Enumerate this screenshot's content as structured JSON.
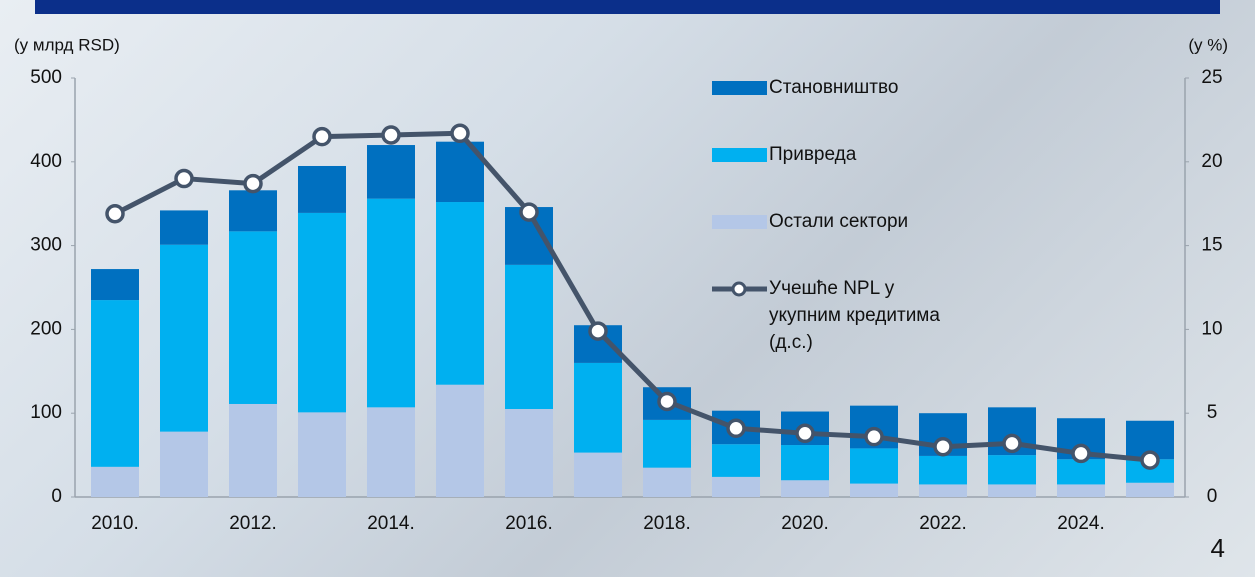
{
  "page_number": "4",
  "chart_data": {
    "type": "bar",
    "stacked": true,
    "y_label": "(у млрд RSD)",
    "y2_label": "(у %)",
    "categories": [
      "2010.",
      null,
      "2012.",
      null,
      "2014.",
      null,
      "2016.",
      null,
      "2018.",
      null,
      "2020.",
      null,
      "2022.",
      null,
      "2024.",
      null
    ],
    "series": [
      {
        "name": "Становништво",
        "color": "#0070c0",
        "values": [
          37,
          41,
          49,
          56,
          64,
          72,
          69,
          45,
          39,
          40,
          40,
          51,
          51,
          57,
          49,
          46
        ]
      },
      {
        "name": "Привреда",
        "color": "#00b0f0",
        "values": [
          199,
          223,
          206,
          238,
          249,
          218,
          172,
          107,
          57,
          39,
          42,
          42,
          34,
          35,
          30,
          28
        ]
      },
      {
        "name": "Остали сектори",
        "color": "#b4c7e7",
        "values": [
          36,
          78,
          111,
          101,
          107,
          134,
          105,
          53,
          35,
          24,
          20,
          16,
          15,
          15,
          15,
          17
        ]
      },
      {
        "name": "Учешће NPL у укупним кредитима (д.с.)",
        "type": "line",
        "axis": "y2",
        "color": "#44546a",
        "values": [
          16.9,
          19.0,
          18.7,
          21.5,
          21.6,
          21.7,
          17.0,
          9.9,
          5.7,
          4.1,
          3.8,
          3.6,
          3.0,
          3.2,
          2.6,
          2.2
        ]
      }
    ],
    "ylim": [
      0,
      500
    ],
    "yticks": [
      0,
      100,
      200,
      300,
      400,
      500
    ],
    "y2lim": [
      0,
      25
    ],
    "y2ticks": [
      0,
      5,
      10,
      15,
      20,
      25
    ],
    "grid": false
  }
}
